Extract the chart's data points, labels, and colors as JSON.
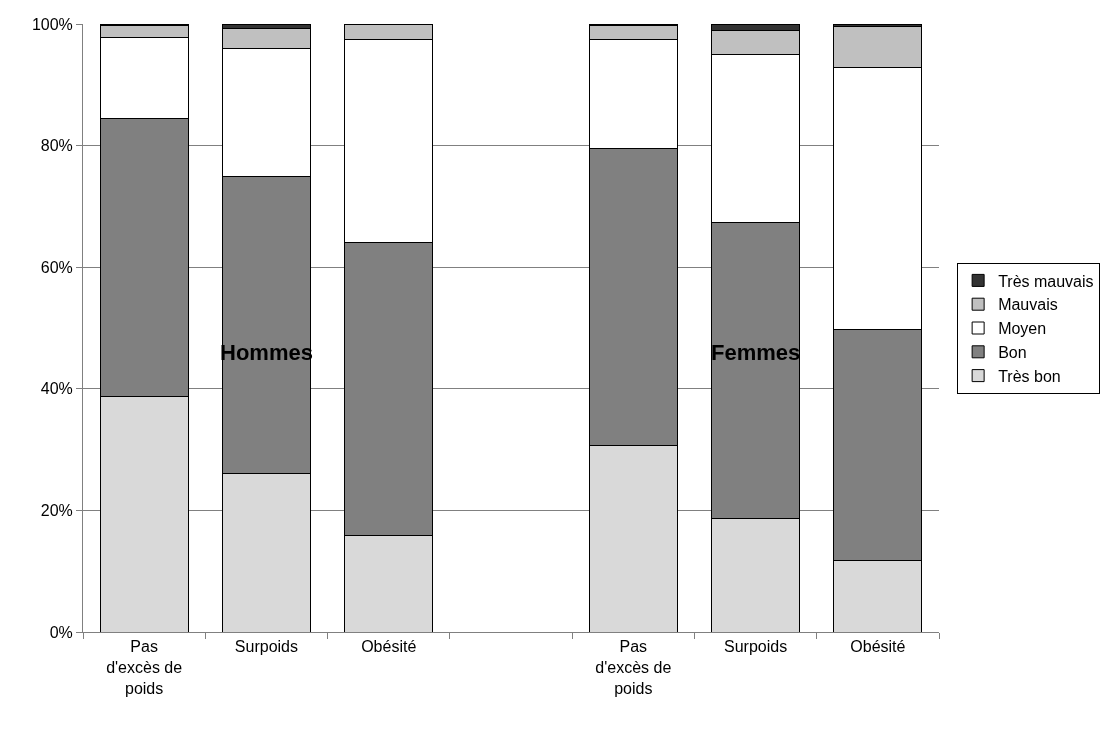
{
  "chart_data": {
    "type": "bar",
    "stacked": true,
    "categories": [
      "Pas d'excès de poids",
      "Surpoids",
      "Obésité",
      null,
      "Pas d'excès de poids",
      "Surpoids",
      "Obésité"
    ],
    "series": [
      {
        "name": "Très bon",
        "color": "#d9d9d9",
        "values": [
          38.8,
          26,
          15.8,
          null,
          30.6,
          18.7,
          11.8
        ]
      },
      {
        "name": "Bon",
        "color": "#808080",
        "values": [
          45.7,
          49,
          48.3,
          null,
          49,
          48.6,
          38
        ]
      },
      {
        "name": "Moyen",
        "color": "#ffffff",
        "values": [
          13.2,
          21,
          33.3,
          null,
          17.8,
          27.7,
          43
        ]
      },
      {
        "name": "Mauvais",
        "color": "#c0c0c0",
        "values": [
          2,
          3.3,
          2.6,
          null,
          2.3,
          4,
          6.8
        ]
      },
      {
        "name": "Très mauvais",
        "color": "#333333",
        "values": [
          0.3,
          0.7,
          0,
          null,
          0.3,
          1,
          0.4
        ]
      }
    ],
    "ylim": [
      0,
      100
    ],
    "yticks": [
      {
        "value": 0,
        "label": "0%"
      },
      {
        "value": 20,
        "label": "20%"
      },
      {
        "value": 40,
        "label": "40%"
      },
      {
        "value": 60,
        "label": "60%"
      },
      {
        "value": 80,
        "label": "80%"
      },
      {
        "value": 100,
        "label": "100%"
      }
    ],
    "grid": "y",
    "legend": "right",
    "annotations": [
      "Hommes",
      "Femmes"
    ]
  }
}
